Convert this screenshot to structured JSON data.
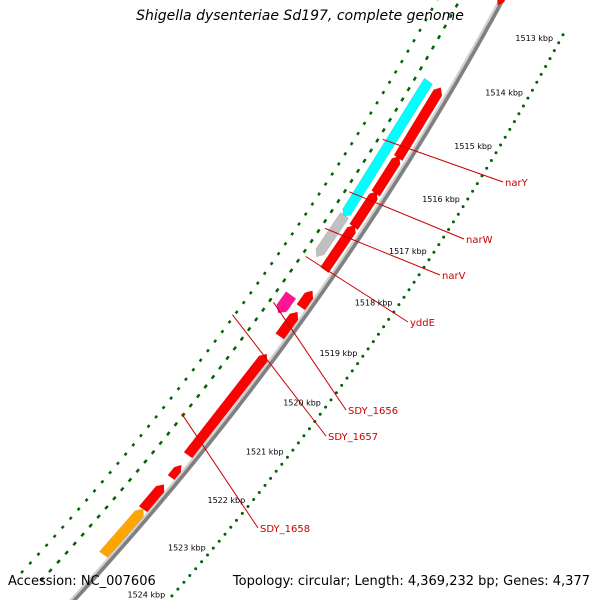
{
  "title": "Shigella dysenteriae Sd197, complete genome",
  "accession": "Accession: NC_007606",
  "summary": "Topology: circular; Length: 4,369,232 bp; Genes: 4,377",
  "colors": {
    "backbone": "#808080",
    "tick_outer": "#006400",
    "gene_red": "#ff0000",
    "gene_cyan": "#00ffff",
    "gene_gray": "#c0c0c0",
    "gene_magenta": "#ff1493",
    "gene_orange": "#ffa500",
    "label_red": "#cc0000"
  },
  "ruler": {
    "unit": "kbp",
    "ticks": [
      "1513 kbp",
      "1514 kbp",
      "1515 kbp",
      "1516 kbp",
      "1517 kbp",
      "1518 kbp",
      "1519 kbp",
      "1520 kbp",
      "1521 kbp",
      "1522 kbp",
      "1523 kbp",
      "1524 kbp"
    ]
  },
  "gene_labels": [
    "narY",
    "narW",
    "narV",
    "yddE",
    "SDY_1656",
    "SDY_1657",
    "SDY_1658"
  ]
}
